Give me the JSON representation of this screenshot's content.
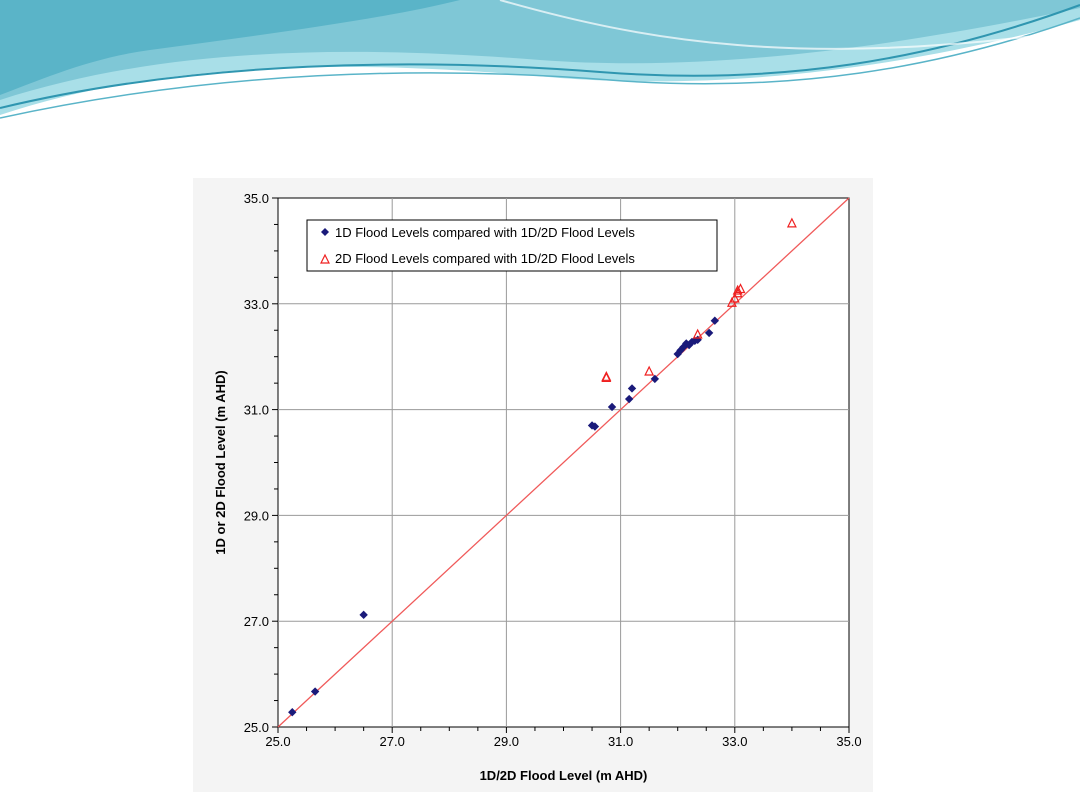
{
  "chart_data": {
    "type": "scatter",
    "xlabel": "1D/2D Flood Level (m AHD)",
    "ylabel": "1D or 2D Flood Level (m AHD)",
    "xlim": [
      25.0,
      35.0
    ],
    "ylim": [
      25.0,
      35.0
    ],
    "xticks": [
      "25.0",
      "27.0",
      "29.0",
      "31.0",
      "33.0",
      "35.0"
    ],
    "yticks": [
      "25.0",
      "27.0",
      "29.0",
      "31.0",
      "33.0",
      "35.0"
    ],
    "grid": true,
    "legend_position": "top-left",
    "reference_line": {
      "from": [
        25.0,
        25.0
      ],
      "to": [
        35.0,
        35.0
      ],
      "color": "#f05a5a"
    },
    "series": [
      {
        "name": "1D Flood Levels compared with 1D/2D Flood Levels",
        "marker": "diamond",
        "color": "#1a1a7a",
        "points": [
          [
            25.25,
            25.28
          ],
          [
            25.65,
            25.67
          ],
          [
            26.5,
            27.12
          ],
          [
            30.5,
            30.7
          ],
          [
            30.55,
            30.68
          ],
          [
            30.85,
            31.05
          ],
          [
            31.15,
            31.2
          ],
          [
            31.2,
            31.4
          ],
          [
            31.6,
            31.58
          ],
          [
            32.0,
            32.05
          ],
          [
            32.05,
            32.12
          ],
          [
            32.1,
            32.18
          ],
          [
            32.15,
            32.25
          ],
          [
            32.2,
            32.22
          ],
          [
            32.25,
            32.28
          ],
          [
            32.3,
            32.3
          ],
          [
            32.35,
            32.32
          ],
          [
            32.55,
            32.45
          ],
          [
            32.65,
            32.68
          ]
        ]
      },
      {
        "name": "2D Flood Levels compared with 1D/2D Flood Levels",
        "marker": "triangle",
        "color": "#ef2020",
        "points": [
          [
            30.75,
            31.6
          ],
          [
            30.75,
            31.62
          ],
          [
            31.5,
            31.72
          ],
          [
            32.35,
            32.42
          ],
          [
            32.95,
            33.02
          ],
          [
            33.0,
            33.1
          ],
          [
            33.05,
            33.2
          ],
          [
            33.05,
            33.25
          ],
          [
            33.1,
            33.28
          ],
          [
            34.0,
            34.52
          ]
        ]
      }
    ]
  },
  "decoration": {
    "wave_colors": [
      "#5ab4c8",
      "#8fd0dc",
      "#2f96b0"
    ]
  }
}
